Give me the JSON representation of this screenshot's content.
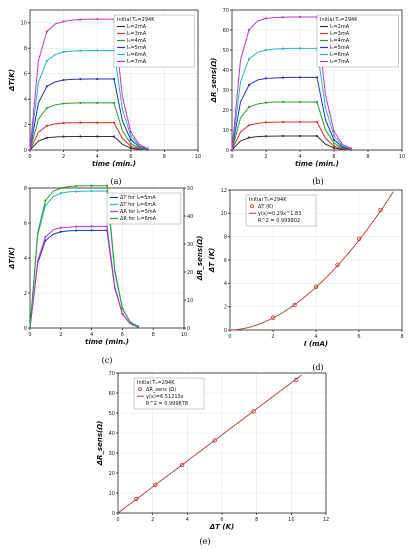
{
  "charts_meta": {
    "a": {
      "caption": "(a)",
      "ylabel": "ΔT(K)",
      "xlabel": "time (min.)",
      "legend_title": "Initial T₀=294K",
      "legend": [
        "I₀=2mA",
        "I₀=3mA",
        "I₀=4mA",
        "I₀=5mA",
        "I₀=6mA",
        "I₀=7mA"
      ]
    },
    "b": {
      "caption": "(b)",
      "ylabel": "ΔR_sens(Ω)",
      "xlabel": "time (min.)",
      "legend_title": "Initial T₀=294K",
      "legend": [
        "I₀=2mA",
        "I₀=3mA",
        "I₀=4mA",
        "I₀=5mA",
        "I₀=6mA",
        "I₀=7mA"
      ]
    },
    "c": {
      "caption": "(c)",
      "ylabel": "ΔT(K)",
      "ylabel2": "ΔR_sens(Ω)",
      "xlabel": "time (min.)",
      "legend": [
        "ΔT for I₀=5mA",
        "ΔT for I₀=6mA",
        "ΔR for I₀=5mA",
        "ΔR for I₀=6mA"
      ]
    },
    "d": {
      "caption": "(d)",
      "ylabel": "ΔT (K)",
      "xlabel": "I (mA)",
      "legend_title": "Initial T₀=294K",
      "legend": [
        "ΔT (K)",
        "y(x)=0.29x^1.83",
        "R^2 = 0.999902"
      ]
    },
    "e": {
      "caption": "(e)",
      "ylabel": "ΔR_sens(Ω)",
      "xlabel": "ΔT (K)",
      "legend_title": "Initial T₀=294K",
      "legend": [
        "ΔR_sens (Ω)",
        "y(x)=6.51213x",
        "R^2 = 0.999878"
      ]
    }
  },
  "chart_data": [
    {
      "id": "a",
      "type": "line",
      "xlim": [
        0,
        10
      ],
      "ylim": [
        0,
        11
      ],
      "xticks": [
        0,
        2,
        4,
        6,
        8,
        10
      ],
      "yticks": [
        0,
        2,
        4,
        6,
        8,
        10
      ],
      "grid": true,
      "legend_position": "top-right",
      "x": [
        0,
        0.5,
        1,
        1.5,
        2,
        2.5,
        3,
        3.5,
        4,
        4.5,
        5,
        5.5,
        6,
        6.5,
        7
      ],
      "series": [
        {
          "name": "I₀=2mA",
          "color": "#333333",
          "values": [
            0,
            0.7,
            0.95,
            1.02,
            1.05,
            1.06,
            1.06,
            1.06,
            1.06,
            1.06,
            1.06,
            0.45,
            0.15,
            0.05,
            0.02
          ]
        },
        {
          "name": "I₀=3mA",
          "color": "#e03030",
          "values": [
            0,
            1.4,
            1.9,
            2.05,
            2.12,
            2.14,
            2.15,
            2.15,
            2.15,
            2.15,
            2.15,
            0.9,
            0.3,
            0.1,
            0.03
          ]
        },
        {
          "name": "I₀=4mA",
          "color": "#2aa02a",
          "values": [
            0,
            2.4,
            3.3,
            3.55,
            3.65,
            3.68,
            3.7,
            3.7,
            3.7,
            3.7,
            3.7,
            1.5,
            0.5,
            0.15,
            0.05
          ]
        },
        {
          "name": "I₀=5mA",
          "color": "#2233cc",
          "values": [
            0,
            3.7,
            5.0,
            5.35,
            5.5,
            5.55,
            5.57,
            5.58,
            5.58,
            5.58,
            5.58,
            2.3,
            0.8,
            0.25,
            0.07
          ]
        },
        {
          "name": "I₀=6mA",
          "color": "#22b8cc",
          "values": [
            0,
            5.3,
            7.0,
            7.5,
            7.7,
            7.78,
            7.8,
            7.82,
            7.82,
            7.82,
            7.82,
            3.2,
            1.1,
            0.35,
            0.1
          ]
        },
        {
          "name": "I₀=7mA",
          "color": "#cc33cc",
          "values": [
            0,
            7.0,
            9.3,
            9.9,
            10.1,
            10.2,
            10.25,
            10.27,
            10.28,
            10.28,
            10.28,
            4.2,
            1.4,
            0.45,
            0.12
          ]
        }
      ]
    },
    {
      "id": "b",
      "type": "line",
      "xlim": [
        0,
        10
      ],
      "ylim": [
        0,
        70
      ],
      "xticks": [
        0,
        2,
        4,
        6,
        8,
        10
      ],
      "yticks": [
        0,
        10,
        20,
        30,
        40,
        50,
        60,
        70
      ],
      "grid": true,
      "legend_position": "top-right",
      "x": [
        0,
        0.5,
        1,
        1.5,
        2,
        2.5,
        3,
        3.5,
        4,
        4.5,
        5,
        5.5,
        6,
        6.5,
        7
      ],
      "series": [
        {
          "name": "I₀=2mA",
          "color": "#333333",
          "values": [
            0,
            4.5,
            6.2,
            6.7,
            6.9,
            6.95,
            7,
            7,
            7,
            7,
            7,
            2.9,
            1.0,
            0.3,
            0.1
          ]
        },
        {
          "name": "I₀=3mA",
          "color": "#e03030",
          "values": [
            0,
            9,
            12.4,
            13.3,
            13.8,
            13.9,
            14,
            14,
            14,
            14,
            14,
            5.8,
            2.0,
            0.6,
            0.2
          ]
        },
        {
          "name": "I₀=4mA",
          "color": "#2aa02a",
          "values": [
            0,
            16,
            21.5,
            23,
            23.7,
            24,
            24,
            24,
            24,
            24,
            24,
            10,
            3.4,
            1.0,
            0.3
          ]
        },
        {
          "name": "I₀=5mA",
          "color": "#2233cc",
          "values": [
            0,
            24,
            32.5,
            35,
            35.8,
            36,
            36.2,
            36.3,
            36.3,
            36.3,
            36.3,
            15,
            5.1,
            1.5,
            0.4
          ]
        },
        {
          "name": "I₀=6mA",
          "color": "#22b8cc",
          "values": [
            0,
            34,
            45.5,
            48.8,
            50,
            50.5,
            50.7,
            50.8,
            50.8,
            50.8,
            50.8,
            21,
            7.1,
            2.1,
            0.6
          ]
        },
        {
          "name": "I₀=7mA",
          "color": "#cc33cc",
          "values": [
            0,
            45,
            60,
            64.5,
            65.8,
            66.2,
            66.4,
            66.5,
            66.5,
            66.5,
            66.5,
            27.5,
            9.3,
            2.8,
            0.8
          ]
        }
      ]
    },
    {
      "id": "c",
      "type": "line",
      "xlim": [
        0,
        10
      ],
      "ylim": [
        0,
        8
      ],
      "y2lim": [
        0,
        50
      ],
      "xticks": [
        0,
        2,
        4,
        6,
        8,
        10
      ],
      "yticks": [
        0,
        2,
        4,
        6,
        8
      ],
      "y2ticks": [
        0,
        10,
        20,
        30,
        40,
        50
      ],
      "grid": true,
      "legend_position": "top-right",
      "x": [
        0,
        0.5,
        1,
        1.5,
        2,
        2.5,
        3,
        3.5,
        4,
        4.5,
        5,
        5.5,
        6,
        6.5,
        7
      ],
      "series": [
        {
          "name": "ΔT for I₀=5mA",
          "color": "#2233cc",
          "axis": "left",
          "values": [
            0,
            3.7,
            5.0,
            5.35,
            5.5,
            5.55,
            5.57,
            5.58,
            5.58,
            5.58,
            5.58,
            2.3,
            0.8,
            0.25,
            0.07
          ]
        },
        {
          "name": "ΔT for I₀=6mA",
          "color": "#22b8cc",
          "axis": "left",
          "values": [
            0,
            5.3,
            7.0,
            7.5,
            7.7,
            7.78,
            7.8,
            7.82,
            7.82,
            7.82,
            7.82,
            3.2,
            1.1,
            0.35,
            0.1
          ]
        },
        {
          "name": "ΔR for I₀=5mA",
          "color": "#cc33cc",
          "axis": "right",
          "values": [
            0,
            24,
            32.5,
            35,
            35.8,
            36,
            36.2,
            36.3,
            36.3,
            36.3,
            36.3,
            15,
            5.1,
            1.5,
            0.4
          ]
        },
        {
          "name": "ΔR for I₀=6mA",
          "color": "#2aa02a",
          "axis": "right",
          "values": [
            0,
            34,
            45.5,
            48.8,
            50,
            50.5,
            50.7,
            50.8,
            50.8,
            50.8,
            50.8,
            21,
            7.1,
            2.1,
            0.6
          ]
        }
      ]
    },
    {
      "id": "d",
      "type": "scatter",
      "xlim": [
        0,
        8
      ],
      "ylim": [
        0,
        12
      ],
      "xticks": [
        0,
        2,
        4,
        6,
        8
      ],
      "yticks": [
        0,
        2,
        4,
        6,
        8,
        10,
        12
      ],
      "grid": true,
      "legend_position": "top-left",
      "points_x": [
        2,
        3,
        4,
        5,
        6,
        7
      ],
      "points_y": [
        1.06,
        2.15,
        3.7,
        5.58,
        7.82,
        10.28
      ],
      "fit": {
        "a": 0.29,
        "b": 1.83
      },
      "point_color": "#c0392b",
      "fit_color": "#c0392b"
    },
    {
      "id": "e",
      "type": "scatter",
      "xlim": [
        0,
        12
      ],
      "ylim": [
        0,
        70
      ],
      "xticks": [
        0,
        2,
        4,
        6,
        8,
        10,
        12
      ],
      "yticks": [
        0,
        10,
        20,
        30,
        40,
        50,
        60,
        70
      ],
      "grid": true,
      "legend_position": "top-left",
      "points_x": [
        1.06,
        2.15,
        3.7,
        5.58,
        7.82,
        10.28
      ],
      "points_y": [
        7,
        14,
        24,
        36.3,
        50.8,
        66.5
      ],
      "fit": {
        "slope": 6.51213
      },
      "point_color": "#c0392b",
      "fit_color": "#c0392b"
    }
  ]
}
